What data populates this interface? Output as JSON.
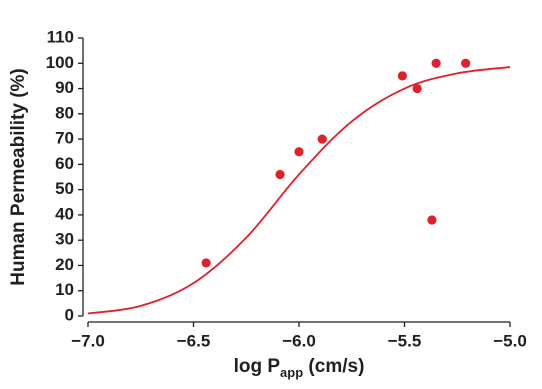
{
  "chart_data": {
    "type": "scatter",
    "x_label": {
      "main": "log P",
      "sub": "app",
      "unit": " (cm/s)"
    },
    "y_label": "Human Permeability (%)",
    "xlim": [
      -7.0,
      -5.0
    ],
    "xticks": [
      {
        "value": -7.0,
        "label": "−7.0"
      },
      {
        "value": -6.5,
        "label": "−6.5"
      },
      {
        "value": -6.0,
        "label": "−6.0"
      },
      {
        "value": -5.5,
        "label": "−5.5"
      },
      {
        "value": -5.0,
        "label": "−5.0"
      }
    ],
    "ylim": [
      0,
      110
    ],
    "yticks": [
      0,
      10,
      20,
      30,
      40,
      50,
      60,
      70,
      80,
      90,
      100,
      110
    ],
    "grid": false,
    "series": [
      {
        "type": "scatter",
        "color": "#e0202a",
        "x": [
          -6.44,
          -6.09,
          -6.0,
          -5.89,
          -5.51,
          -5.44,
          -5.37,
          -5.35,
          -5.21
        ],
        "values": [
          21,
          56,
          65,
          70,
          95,
          90,
          38,
          100,
          100
        ]
      },
      {
        "type": "line",
        "color": "#e0202a",
        "x": [
          -7.0,
          -6.75,
          -6.5,
          -6.25,
          -6.0,
          -5.75,
          -5.5,
          -5.25,
          -5.0
        ],
        "values": [
          1,
          4,
          13,
          31,
          56,
          77,
          90,
          96,
          98.5
        ]
      }
    ]
  }
}
